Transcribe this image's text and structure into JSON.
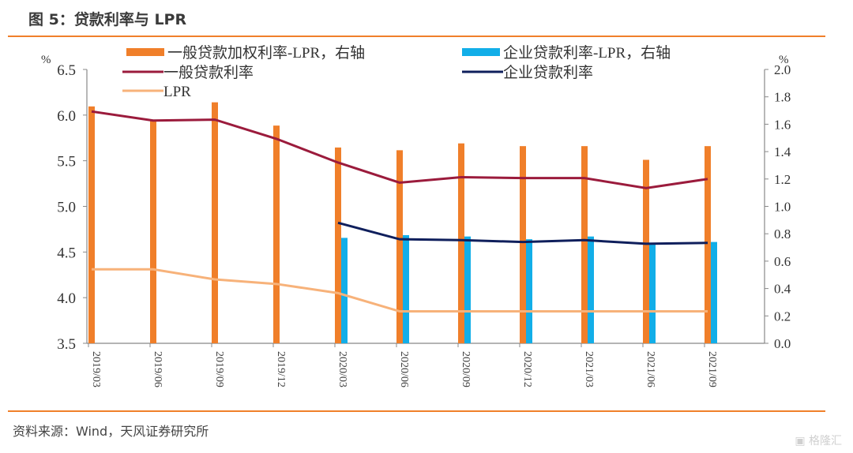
{
  "title": "图 5：贷款利率与 LPR",
  "source": "资料来源：Wind，天风证券研究所",
  "watermark": "格隆汇",
  "chart_data": {
    "type": "bar",
    "title": "图 5：贷款利率与 LPR",
    "categories": [
      "2019/03",
      "2019/06",
      "2019/09",
      "2019/12",
      "2020/03",
      "2020/06",
      "2020/09",
      "2020/12",
      "2021/03",
      "2021/06",
      "2021/09"
    ],
    "left_axis": {
      "label": "%",
      "ylim": [
        3.5,
        6.5
      ],
      "ticks": [
        "3.5",
        "4.0",
        "4.5",
        "5.0",
        "5.5",
        "6.0",
        "6.5"
      ]
    },
    "right_axis": {
      "label": "%",
      "ylim": [
        0.0,
        2.0
      ],
      "ticks": [
        "0.0",
        "0.2",
        "0.4",
        "0.6",
        "0.8",
        "1.0",
        "1.2",
        "1.4",
        "1.6",
        "1.8",
        "2.0"
      ]
    },
    "legend": "top",
    "series": [
      {
        "name": "一般贷款加权利率-LPR，右轴",
        "kind": "bar",
        "axis": "right",
        "color": "#f07f2a",
        "values": [
          1.73,
          1.63,
          1.76,
          1.59,
          1.43,
          1.41,
          1.46,
          1.44,
          1.44,
          1.34,
          1.44
        ]
      },
      {
        "name": "企业贷款利率-LPR，右轴",
        "kind": "bar",
        "axis": "right",
        "color": "#12aee8",
        "values": [
          null,
          null,
          null,
          null,
          0.77,
          0.79,
          0.78,
          0.76,
          0.78,
          0.72,
          0.74
        ]
      },
      {
        "name": "一般贷款利率",
        "kind": "line",
        "axis": "left",
        "color": "#9b1b3c",
        "values": [
          6.04,
          5.94,
          5.95,
          5.74,
          5.48,
          5.26,
          5.32,
          5.31,
          5.31,
          5.2,
          5.3
        ]
      },
      {
        "name": "企业贷款利率",
        "kind": "line",
        "axis": "left",
        "color": "#0f1f5c",
        "values": [
          null,
          null,
          null,
          null,
          4.82,
          4.64,
          4.63,
          4.61,
          4.63,
          4.59,
          4.6
        ]
      },
      {
        "name": "LPR",
        "kind": "line",
        "axis": "left",
        "color": "#f7b27a",
        "values": [
          4.31,
          4.31,
          4.2,
          4.15,
          4.05,
          3.85,
          3.85,
          3.85,
          3.85,
          3.85,
          3.85
        ]
      }
    ]
  }
}
